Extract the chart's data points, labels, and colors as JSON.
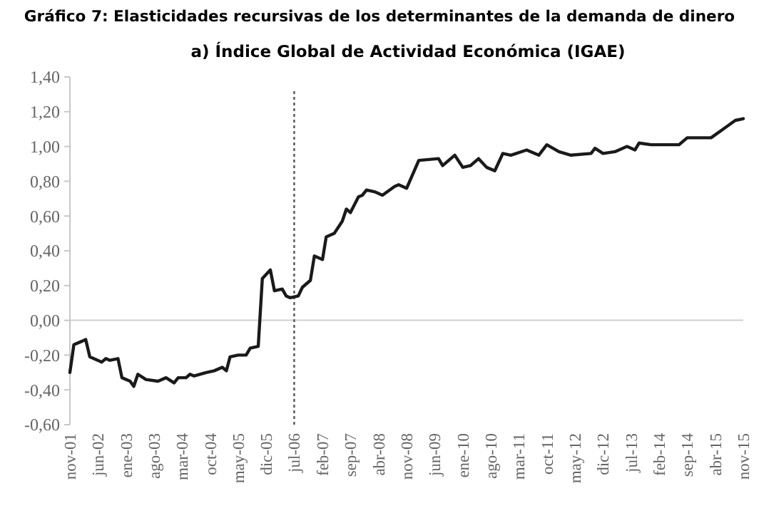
{
  "chart_data": {
    "type": "line",
    "title": "Gráfico 7: Elasticidades recursivas de los determinantes de la demanda de dinero",
    "subtitle": "a) Índice Global de Actividad Económica (IGAE)",
    "x": [
      "2001-11",
      "2001-12",
      "2002-02",
      "2002-03",
      "2002-04",
      "2002-05",
      "2002-07",
      "2002-08",
      "2002-09",
      "2002-11",
      "2002-12",
      "2003-02",
      "2003-03",
      "2003-04",
      "2003-06",
      "2003-09",
      "2003-11",
      "2004-01",
      "2004-02",
      "2004-04",
      "2004-05",
      "2004-06",
      "2004-09",
      "2004-11",
      "2005-01",
      "2005-02",
      "2005-03",
      "2005-05",
      "2005-07",
      "2005-08",
      "2005-10",
      "2005-11",
      "2006-01",
      "2006-02",
      "2006-04",
      "2006-05",
      "2006-06",
      "2006-08",
      "2006-09",
      "2006-11",
      "2006-12",
      "2007-02",
      "2007-03",
      "2007-05",
      "2007-07",
      "2007-08",
      "2007-09",
      "2007-11",
      "2007-12",
      "2008-01",
      "2008-03",
      "2008-04",
      "2008-05",
      "2008-08",
      "2008-09",
      "2008-11",
      "2009-02",
      "2009-07",
      "2009-08",
      "2009-11",
      "2010-01",
      "2010-03",
      "2010-05",
      "2010-07",
      "2010-09",
      "2010-11",
      "2011-01",
      "2011-05",
      "2011-08",
      "2011-10",
      "2012-01",
      "2012-04",
      "2012-09",
      "2012-10",
      "2012-12",
      "2013-03",
      "2013-06",
      "2013-08",
      "2013-09",
      "2013-12",
      "2014-07",
      "2014-09",
      "2015-03",
      "2015-06",
      "2015-09",
      "2015-11"
    ],
    "series": [
      {
        "color": "#1a1a1a",
        "values": [
          -0.3,
          -0.14,
          -0.12,
          -0.11,
          -0.21,
          -0.22,
          -0.24,
          -0.22,
          -0.23,
          -0.22,
          -0.33,
          -0.35,
          -0.38,
          -0.31,
          -0.34,
          -0.35,
          -0.33,
          -0.36,
          -0.33,
          -0.33,
          -0.31,
          -0.32,
          -0.3,
          -0.29,
          -0.27,
          -0.29,
          -0.21,
          -0.2,
          -0.2,
          -0.16,
          -0.15,
          0.24,
          0.29,
          0.17,
          0.18,
          0.14,
          0.13,
          0.14,
          0.19,
          0.23,
          0.37,
          0.35,
          0.48,
          0.5,
          0.57,
          0.64,
          0.62,
          0.71,
          0.72,
          0.75,
          0.74,
          0.73,
          0.72,
          0.77,
          0.78,
          0.76,
          0.92,
          0.93,
          0.89,
          0.95,
          0.88,
          0.89,
          0.93,
          0.88,
          0.86,
          0.96,
          0.95,
          0.98,
          0.95,
          1.01,
          0.97,
          0.95,
          0.96,
          0.99,
          0.96,
          0.97,
          1.0,
          0.98,
          1.02,
          1.01,
          1.01,
          1.05,
          1.05,
          1.1,
          1.15,
          1.16
        ]
      }
    ],
    "xlim": [
      "2001-11",
      "2015-11"
    ],
    "xticks": [
      {
        "value": "2001-11",
        "label": "nov-01"
      },
      {
        "value": "2002-06",
        "label": "jun-02"
      },
      {
        "value": "2003-01",
        "label": "ene-03"
      },
      {
        "value": "2003-08",
        "label": "ago-03"
      },
      {
        "value": "2004-03",
        "label": "mar-04"
      },
      {
        "value": "2004-10",
        "label": "oct-04"
      },
      {
        "value": "2005-05",
        "label": "may-05"
      },
      {
        "value": "2005-12",
        "label": "dic-05"
      },
      {
        "value": "2006-07",
        "label": "jul-06"
      },
      {
        "value": "2007-02",
        "label": "feb-07"
      },
      {
        "value": "2007-09",
        "label": "sep-07"
      },
      {
        "value": "2008-04",
        "label": "abr-08"
      },
      {
        "value": "2008-11",
        "label": "nov-08"
      },
      {
        "value": "2009-06",
        "label": "jun-09"
      },
      {
        "value": "2010-01",
        "label": "ene-10"
      },
      {
        "value": "2010-08",
        "label": "ago-10"
      },
      {
        "value": "2011-03",
        "label": "mar-11"
      },
      {
        "value": "2011-10",
        "label": "oct-11"
      },
      {
        "value": "2012-05",
        "label": "may-12"
      },
      {
        "value": "2012-12",
        "label": "dic-12"
      },
      {
        "value": "2013-07",
        "label": "jul-13"
      },
      {
        "value": "2014-02",
        "label": "feb-14"
      },
      {
        "value": "2014-09",
        "label": "sep-14"
      },
      {
        "value": "2015-04",
        "label": "abr-15"
      },
      {
        "value": "2015-11",
        "label": "nov-15"
      }
    ],
    "ylim": [
      -0.6,
      1.4
    ],
    "yticks": [
      {
        "value": -0.6,
        "label": "-0,60"
      },
      {
        "value": -0.4,
        "label": "-0,40"
      },
      {
        "value": -0.2,
        "label": "-0,20"
      },
      {
        "value": 0,
        "label": "0,00"
      },
      {
        "value": 0.2,
        "label": "0,20"
      },
      {
        "value": 0.4,
        "label": "0,40"
      },
      {
        "value": 0.6,
        "label": "0,60"
      },
      {
        "value": 0.8,
        "label": "0,80"
      },
      {
        "value": 1.0,
        "label": "1,00"
      },
      {
        "value": 1.2,
        "label": "1,20"
      },
      {
        "value": 1.4,
        "label": "1,40"
      }
    ],
    "ref_lines": [
      {
        "axis": "y",
        "value": 0,
        "color": "#d0d0d0",
        "line_style": "solid"
      },
      {
        "axis": "x",
        "value": "2006-07",
        "color": "#555555",
        "line_style": "dotted"
      }
    ],
    "grid": false,
    "marker": "none",
    "line_style": "solid"
  }
}
